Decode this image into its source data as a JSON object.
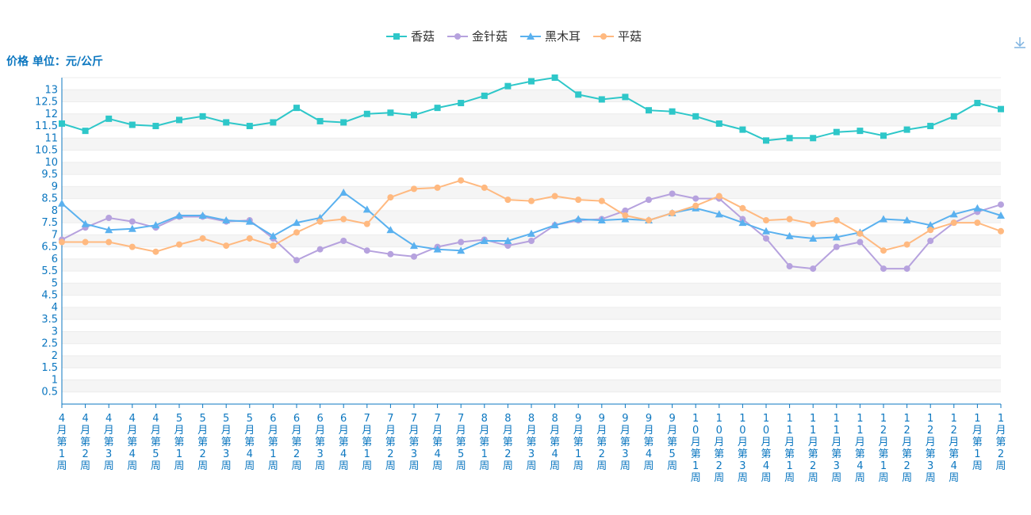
{
  "colors": {
    "axis_text": "#0c77c0",
    "grid_band": "#f5f5f5",
    "icon": "#7fb3e0"
  },
  "toolbar": {
    "download_icon": "download-icon"
  },
  "chart_data": {
    "type": "line",
    "ylabel": "价格 单位：元/公斤",
    "ylim": [
      0,
      13.5
    ],
    "yticks": [
      0.5,
      1,
      1.5,
      2,
      2.5,
      3,
      3.5,
      4,
      4.5,
      5,
      5.5,
      6,
      6.5,
      7,
      7.5,
      8,
      8.5,
      9,
      9.5,
      10,
      10.5,
      11,
      11.5,
      12,
      12.5,
      13
    ],
    "grid": "horizontal-bands",
    "legend_position": "top-center",
    "categories": [
      "4月第1周",
      "4月第2周",
      "4月第3周",
      "4月第4周",
      "4月第5周",
      "5月第1周",
      "5月第2周",
      "5月第3周",
      "5月第4周",
      "6月第1周",
      "6月第2周",
      "6月第3周",
      "6月第4周",
      "7月第1周",
      "7月第2周",
      "7月第3周",
      "7月第4周",
      "7月第5周",
      "8月第1周",
      "8月第2周",
      "8月第3周",
      "8月第4周",
      "9月第1周",
      "9月第2周",
      "9月第3周",
      "9月第4周",
      "9月第5周",
      "10月第1周",
      "10月第2周",
      "10月第3周",
      "10月第4周",
      "11月第1周",
      "11月第2周",
      "11月第3周",
      "11月第4周",
      "12月第1周",
      "12月第2周",
      "12月第3周",
      "12月第4周",
      "1月第1周",
      "1月第2周"
    ],
    "series": [
      {
        "name": "香菇",
        "color": "#2ec7c9",
        "marker": "square",
        "values": [
          11.6,
          11.3,
          11.8,
          11.55,
          11.5,
          11.75,
          11.9,
          11.65,
          11.5,
          11.65,
          12.25,
          11.7,
          11.65,
          12.0,
          12.05,
          11.95,
          12.25,
          12.45,
          12.75,
          13.15,
          13.35,
          13.5,
          12.8,
          12.6,
          12.7,
          12.15,
          12.1,
          11.9,
          11.6,
          11.35,
          10.9,
          11.0,
          11.0,
          11.25,
          11.3,
          11.1,
          11.35,
          11.5,
          11.9,
          12.45,
          12.2
        ]
      },
      {
        "name": "金针菇",
        "color": "#b6a2de",
        "marker": "circle",
        "values": [
          6.8,
          7.3,
          7.7,
          7.55,
          7.3,
          7.75,
          7.75,
          7.55,
          7.6,
          6.85,
          5.95,
          6.4,
          6.75,
          6.35,
          6.2,
          6.1,
          6.5,
          6.7,
          6.8,
          6.55,
          6.75,
          7.4,
          7.6,
          7.65,
          8.0,
          8.45,
          8.7,
          8.5,
          8.5,
          7.65,
          6.85,
          5.7,
          5.6,
          6.5,
          6.7,
          5.6,
          5.6,
          6.75,
          7.5,
          7.95,
          8.25
        ]
      },
      {
        "name": "黑木耳",
        "color": "#5ab1ef",
        "marker": "triangle",
        "values": [
          8.3,
          7.45,
          7.2,
          7.25,
          7.4,
          7.8,
          7.8,
          7.6,
          7.55,
          6.95,
          7.5,
          7.7,
          8.75,
          8.05,
          7.2,
          6.55,
          6.4,
          6.35,
          6.75,
          6.75,
          7.05,
          7.4,
          7.65,
          7.6,
          7.65,
          7.6,
          7.9,
          8.1,
          7.85,
          7.5,
          7.15,
          6.95,
          6.85,
          6.9,
          7.1,
          7.65,
          7.6,
          7.4,
          7.85,
          8.1,
          7.8
        ]
      },
      {
        "name": "平菇",
        "color": "#ffb980",
        "marker": "circle",
        "values": [
          6.7,
          6.7,
          6.7,
          6.5,
          6.3,
          6.6,
          6.85,
          6.55,
          6.85,
          6.55,
          7.1,
          7.55,
          7.65,
          7.45,
          8.55,
          8.9,
          8.95,
          9.25,
          8.95,
          8.45,
          8.4,
          8.6,
          8.45,
          8.4,
          7.8,
          7.6,
          7.9,
          8.2,
          8.6,
          8.1,
          7.6,
          7.65,
          7.45,
          7.6,
          7.05,
          6.35,
          6.6,
          7.2,
          7.5,
          7.5,
          7.15
        ]
      }
    ]
  }
}
